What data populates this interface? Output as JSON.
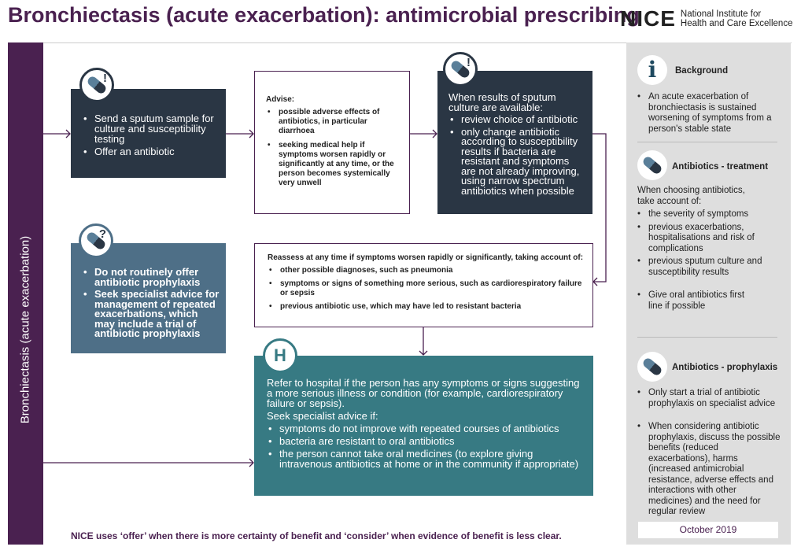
{
  "title": "Bronchiectasis (acute exacerbation): antimicrobial prescribing",
  "logo": {
    "name": "NICE",
    "line1": "National Institute for",
    "line2": "Health and Care Excellence"
  },
  "sidebar_label": "Bronchiectasis (acute exacerbation)",
  "box_sputum": {
    "items": [
      "Send a sputum sample for culture and susceptibility testing",
      "Offer an antibiotic"
    ]
  },
  "box_advise": {
    "heading": "Advise:",
    "items": [
      "possible adverse effects of antibiotics, in particular diarrhoea",
      "seeking medical help if symptoms worsen rapidly or significantly at any time, or the person becomes systemically very unwell"
    ]
  },
  "box_results": {
    "heading": "When results of sputum culture are available:",
    "items": [
      "review choice of antibiotic",
      "only change antibiotic according to susceptibility results if bacteria are resistant and symptoms are not already improving, using narrow spectrum antibiotics when possible"
    ]
  },
  "box_prophylaxis": {
    "items": [
      "Do not routinely offer antibiotic prophylaxis",
      "Seek specialist advice for management of repeated exacerbations, which may include a trial of antibiotic prophylaxis"
    ]
  },
  "box_reassess": {
    "heading": "Reassess at any time if symptoms worsen rapidly or significantly, taking account of:",
    "items": [
      "other possible diagnoses, such as pneumonia",
      "symptoms or signs of something more serious, such as cardiorespiratory failure or sepsis",
      "previous antibiotic use, which may have led to resistant bacteria"
    ]
  },
  "box_refer": {
    "icon_letter": "H",
    "para1": "Refer to hospital if the person has any symptoms or signs suggesting a more serious illness or condition (for example, cardiorespiratory failure or sepsis).",
    "para2": "Seek specialist advice if:",
    "items": [
      "symptoms do not improve with repeated courses of antibiotics",
      "bacteria are resistant to oral antibiotics",
      "the person cannot take oral medicines (to explore giving intravenous antibiotics at home or in the community if appropriate)"
    ]
  },
  "panel": {
    "background": {
      "icon_letter": "i",
      "heading": "Background",
      "items": [
        "An acute exacerbation of bronchiectasis is sustained worsening of symptoms from a person's stable state"
      ]
    },
    "treatment": {
      "heading": "Antibiotics - treatment",
      "intro": "When choosing antibiotics, take account of:",
      "items": [
        "the severity of symptoms",
        "previous exacerbations, hospitalisations and risk of complications",
        "previous sputum culture and susceptibility results"
      ],
      "extra": "Give oral antibiotics first line if possible"
    },
    "prophylaxis": {
      "heading": "Antibiotics - prophylaxis",
      "items": [
        "Only start a trial of antibiotic prophylaxis on specialist advice",
        "When considering antibiotic prophylaxis, discuss the possible benefits (reduced exacerbations), harms (increased antimicrobial resistance, adverse effects and interactions with other medicines) and the need for regular review"
      ]
    }
  },
  "footer": "NICE uses ‘offer’ when there is more certainty of benefit and ‘consider’ when evidence of benefit is less clear.",
  "date": "October 2019",
  "colors": {
    "purple": "#4a2150",
    "navy": "#2a3644",
    "slate": "#4e6f87",
    "teal": "#377a83",
    "panel": "#dedede"
  }
}
